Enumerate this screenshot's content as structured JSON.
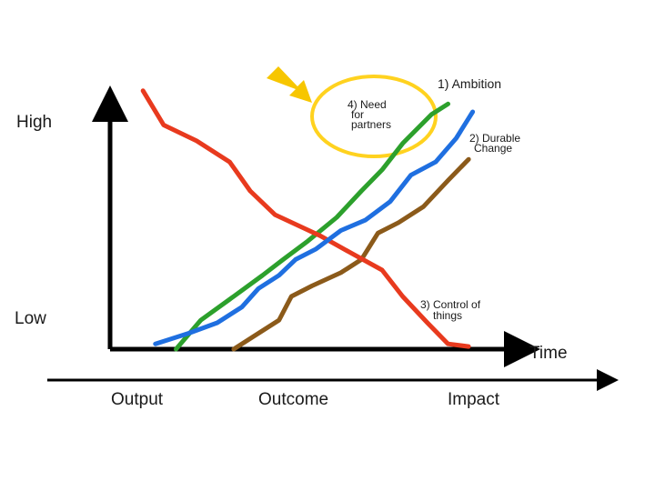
{
  "chart_data": {
    "type": "line",
    "x_range": [
      0,
      10
    ],
    "y_range": [
      0,
      10
    ],
    "y_axis": {
      "high_label": "High",
      "low_label": "Low"
    },
    "x_axis": {
      "label": "Time",
      "phases": [
        "Output",
        "Outcome",
        "Impact"
      ]
    },
    "series": [
      {
        "name": "1) Ambition",
        "color": "#2ca02c",
        "points": [
          [
            1.6,
            0
          ],
          [
            2.2,
            1.1
          ],
          [
            3.0,
            2.0
          ],
          [
            3.7,
            2.8
          ],
          [
            4.2,
            3.4
          ],
          [
            4.8,
            4.1
          ],
          [
            5.5,
            5.0
          ],
          [
            6.1,
            6.0
          ],
          [
            6.6,
            6.8
          ],
          [
            7.1,
            7.8
          ],
          [
            7.8,
            8.9
          ],
          [
            8.2,
            9.3
          ]
        ]
      },
      {
        "name": "2) Durable Change",
        "color": "#8b5a1a",
        "points": [
          [
            3.0,
            0
          ],
          [
            3.5,
            0.5
          ],
          [
            4.1,
            1.1
          ],
          [
            4.4,
            2.0
          ],
          [
            4.9,
            2.4
          ],
          [
            5.6,
            2.9
          ],
          [
            6.1,
            3.4
          ],
          [
            6.5,
            4.4
          ],
          [
            7.0,
            4.8
          ],
          [
            7.6,
            5.4
          ],
          [
            8.2,
            6.4
          ],
          [
            8.7,
            7.2
          ]
        ]
      },
      {
        "name": "3) Control of things",
        "color": "#e83a1e",
        "points": [
          [
            0.8,
            9.8
          ],
          [
            1.3,
            8.5
          ],
          [
            2.1,
            7.9
          ],
          [
            2.9,
            7.1
          ],
          [
            3.4,
            6.0
          ],
          [
            4.0,
            5.1
          ],
          [
            5.1,
            4.3
          ],
          [
            5.9,
            3.6
          ],
          [
            6.6,
            3.0
          ],
          [
            7.1,
            2.0
          ],
          [
            7.7,
            1.0
          ],
          [
            8.2,
            0.2
          ],
          [
            8.7,
            0.1
          ]
        ]
      },
      {
        "name": "4) Need for partners",
        "color": "#1f6fe0",
        "points": [
          [
            1.1,
            0.2
          ],
          [
            1.9,
            0.6
          ],
          [
            2.6,
            1.0
          ],
          [
            3.2,
            1.6
          ],
          [
            3.6,
            2.3
          ],
          [
            4.1,
            2.8
          ],
          [
            4.5,
            3.4
          ],
          [
            5.0,
            3.8
          ],
          [
            5.6,
            4.5
          ],
          [
            6.2,
            4.9
          ],
          [
            6.8,
            5.6
          ],
          [
            7.3,
            6.6
          ],
          [
            7.9,
            7.1
          ],
          [
            8.4,
            8.0
          ],
          [
            8.8,
            9.0
          ]
        ]
      }
    ]
  }
}
